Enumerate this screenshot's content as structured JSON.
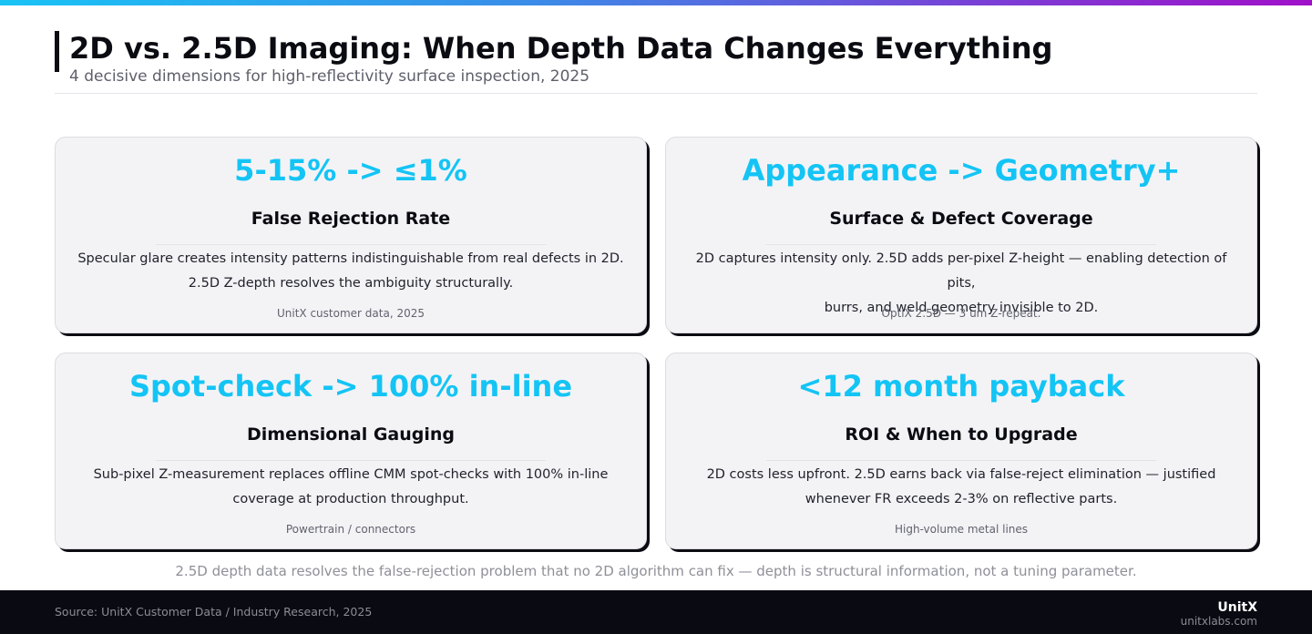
{
  "header": {
    "title": "2D vs. 2.5D Imaging: When Depth Data Changes Everything",
    "subtitle": "4 decisive dimensions for high-reflectivity surface inspection, 2025"
  },
  "cards": [
    {
      "metric": "5-15% -> ≤1%",
      "heading": "False Rejection Rate",
      "body_line1": "Specular glare creates intensity patterns indistinguishable from real defects in 2D.",
      "body_line2": "2.5D Z-depth resolves the ambiguity structurally.",
      "source": "UnitX customer data, 2025"
    },
    {
      "metric": "Appearance -> Geometry+",
      "heading": "Surface & Defect Coverage",
      "body_line1": "2D captures intensity only. 2.5D adds per-pixel Z-height — enabling detection of pits,",
      "body_line2": "burrs, and weld geometry invisible to 2D.",
      "source": "OptiX 2.5D — 3 um Z-repeat."
    },
    {
      "metric": "Spot-check -> 100% in-line",
      "heading": "Dimensional Gauging",
      "body_line1": "Sub-pixel Z-measurement replaces offline CMM spot-checks with 100% in-line",
      "body_line2": "coverage at production throughput.",
      "source": "Powertrain / connectors"
    },
    {
      "metric": "<12 month payback",
      "heading": "ROI & When to Upgrade",
      "body_line1": "2D costs less upfront. 2.5D earns back via false-reject elimination — justified",
      "body_line2": "whenever FR exceeds 2-3% on reflective parts.",
      "source": "High-volume metal lines"
    }
  ],
  "takeaway": "2.5D depth data resolves the false-rejection problem that no 2D algorithm can fix — depth is structural information, not a tuning parameter.",
  "footer": {
    "source": "Source: UnitX Customer Data / Industry Research, 2025",
    "brand": "UnitX",
    "url": "unitxlabs.com"
  },
  "colors": {
    "accent": "#14c4f5",
    "text": "#0b0b12",
    "footer_bg": "#0a0a12",
    "card_bg": "#f3f3f6"
  }
}
